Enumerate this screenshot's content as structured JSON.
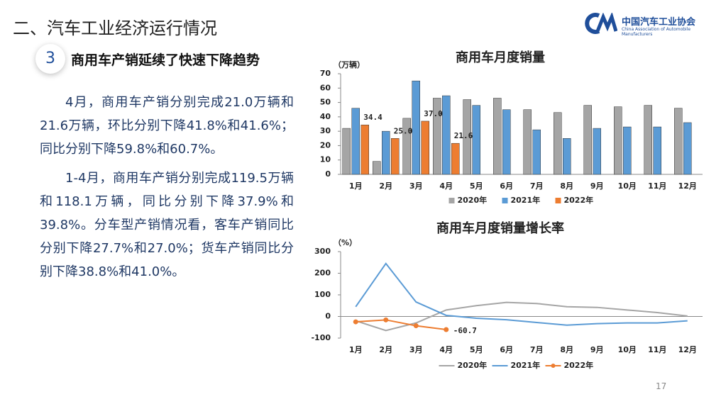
{
  "header": {
    "title": "二、汽车工业经济运行情况",
    "logo_cn": "中国汽车工业协会",
    "logo_en": "China Association of Automobile Manufacturers"
  },
  "section": {
    "number": "3",
    "title": "商用车产销延续了快速下降趋势"
  },
  "paragraphs": [
    "4月，商用车产销分别完成21.0万辆和21.6万辆，环比分别下降41.8%和41.6%；同比分别下降59.8%和60.7%。",
    "1-4月，商用车产销分别完成119.5万辆和118.1万辆，同比分别下降37.9%和39.8%。分车型产销情况看，客车产销同比分别下降27.7%和27.0%；货车产销同比分别下降38.8%和41.0%。"
  ],
  "page_number": "17",
  "chart_data": [
    {
      "type": "bar",
      "title": "商用车月度销量",
      "y_label": "（万辆）",
      "categories": [
        "1月",
        "2月",
        "3月",
        "4月",
        "5月",
        "6月",
        "7月",
        "8月",
        "9月",
        "10月",
        "11月",
        "12月"
      ],
      "ylim": [
        0,
        70
      ],
      "yticks": [
        0,
        10,
        20,
        30,
        40,
        50,
        60,
        70
      ],
      "grid": false,
      "legend": "bottom",
      "series": [
        {
          "name": "2020年",
          "color": "#a5a5a5",
          "values": [
            32,
            9,
            39,
            53,
            52,
            53,
            45,
            43,
            48,
            47,
            48,
            46
          ]
        },
        {
          "name": "2021年",
          "color": "#5b9bd5",
          "values": [
            46,
            30,
            65,
            54.7,
            48,
            45,
            31,
            25,
            32,
            33,
            33,
            36
          ]
        },
        {
          "name": "2022年",
          "color": "#ed7d31",
          "values": [
            34.4,
            25.0,
            37.0,
            21.6,
            null,
            null,
            null,
            null,
            null,
            null,
            null,
            null
          ],
          "value_labels": [
            "34.4",
            "25.0",
            "37.0",
            "21.6",
            null,
            null,
            null,
            null,
            null,
            null,
            null,
            null
          ]
        }
      ]
    },
    {
      "type": "line",
      "title": "商用车月度销量增长率",
      "y_label": "（%）",
      "categories": [
        "1月",
        "2月",
        "3月",
        "4月",
        "5月",
        "6月",
        "7月",
        "8月",
        "9月",
        "10月",
        "11月",
        "12月"
      ],
      "ylim": [
        -100,
        300
      ],
      "yticks": [
        -100,
        0,
        100,
        200,
        300
      ],
      "grid": false,
      "legend": "bottom",
      "series": [
        {
          "name": "2020年",
          "color": "#a5a5a5",
          "values": [
            -20,
            -65,
            -30,
            30,
            50,
            65,
            60,
            45,
            42,
            30,
            18,
            2
          ]
        },
        {
          "name": "2021年",
          "color": "#5b9bd5",
          "values": [
            45,
            245,
            67,
            5,
            -8,
            -15,
            -28,
            -40,
            -33,
            -30,
            -30,
            -20
          ]
        },
        {
          "name": "2022年",
          "color": "#ed7d31",
          "markers": true,
          "values": [
            -24.8,
            -15.8,
            -42.9,
            -60.7,
            null,
            null,
            null,
            null,
            null,
            null,
            null,
            null
          ],
          "value_labels": [
            null,
            null,
            null,
            "-60.7",
            null,
            null,
            null,
            null,
            null,
            null,
            null,
            null
          ]
        }
      ]
    }
  ]
}
